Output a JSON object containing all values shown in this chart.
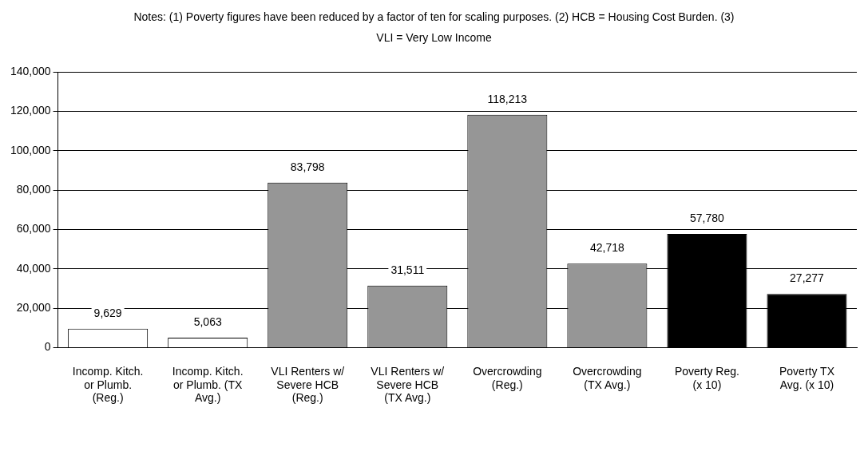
{
  "chart_data": {
    "type": "bar",
    "annotations": [
      "Notes: (1) Poverty figures have been reduced by a factor of ten for scaling purposes. (2) HCB = Housing Cost Burden. (3) VLI = Very Low Income"
    ],
    "categories": [
      "Incomp. Kitch. or Plumb. (Reg.)",
      "Incomp. Kitch. or Plumb. (TX Avg.)",
      "VLI Renters w/ Severe HCB (Reg.)",
      "VLI Renters w/ Severe HCB (TX Avg.)",
      "Overcrowding (Reg.)",
      "Overcrowding (TX Avg.)",
      "Poverty Reg. (x 10)",
      "Poverty TX Avg. (x 10)"
    ],
    "values": [
      9629,
      5063,
      83798,
      31511,
      118213,
      42718,
      57780,
      27277
    ],
    "value_labels": [
      "9,629",
      "5,063",
      "83,798",
      "31,511",
      "118,213",
      "42,718",
      "57,780",
      "27,277"
    ],
    "colors": [
      "#ffffff",
      "#ffffff",
      "#969696",
      "#969696",
      "#969696",
      "#969696",
      "#000000",
      "#000000"
    ],
    "ylim": [
      0,
      140000
    ],
    "yticks": [
      0,
      {
        "value": 20000,
        "label": "20,000"
      },
      {
        "value": 40000,
        "label": "40,000"
      },
      {
        "value": 60000,
        "label": "60,000"
      },
      {
        "value": 80000,
        "label": "80,000"
      },
      {
        "value": 100000,
        "label": "100,000"
      },
      {
        "value": 120000,
        "label": "120,000"
      },
      {
        "value": 140000,
        "label": "140,000"
      }
    ],
    "grid": "y",
    "legend": false
  }
}
